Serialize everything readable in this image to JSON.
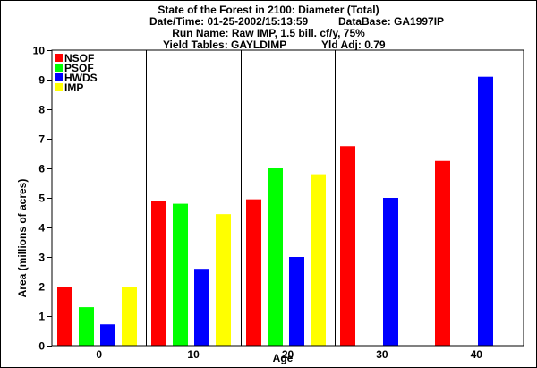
{
  "header": {
    "line1": "State of the Forest in 2100: Diameter (Total)",
    "datetime": "Date/Time: 01-25-2002/15:13:59",
    "database": "DataBase: GA1997IP",
    "runname": "Run Name: Raw IMP, 1.5 bill. cf/y, 75%",
    "yieldtables": "Yield Tables: GAYLDIMP",
    "yldadj": "Yld Adj: 0.79"
  },
  "chart_data": {
    "type": "bar",
    "xlabel": "Age",
    "ylabel": "Area (millions of acres)",
    "ylim": [
      0,
      10
    ],
    "yticks": [
      0,
      1,
      2,
      3,
      4,
      5,
      6,
      7,
      8,
      9,
      10
    ],
    "categories": [
      "0",
      "10",
      "20",
      "30",
      "40"
    ],
    "grid": "vertical lines between categories",
    "legend_position": "top-left",
    "series": [
      {
        "name": "NSOF",
        "color": "#ff0000",
        "values": [
          2.0,
          4.9,
          4.95,
          6.75,
          6.25
        ]
      },
      {
        "name": "PSOF",
        "color": "#00ff00",
        "values": [
          1.3,
          4.8,
          6.0,
          0,
          0
        ]
      },
      {
        "name": "HWDS",
        "color": "#0000ff",
        "values": [
          0.72,
          2.6,
          3.0,
          5.0,
          9.1
        ]
      },
      {
        "name": "IMP",
        "color": "#ffff00",
        "values": [
          2.0,
          4.45,
          5.8,
          0,
          0
        ]
      }
    ]
  }
}
